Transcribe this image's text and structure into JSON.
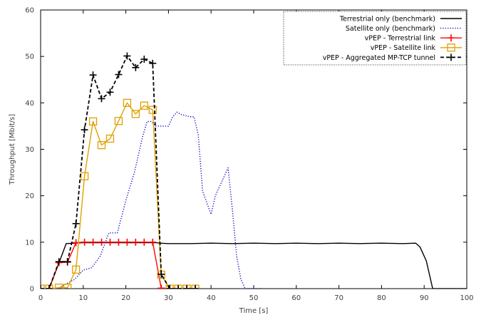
{
  "chart_data": {
    "type": "line",
    "xlabel": "Time [s]",
    "ylabel": "Throughput [Mbit/s]",
    "xlim": [
      0,
      100
    ],
    "ylim": [
      0,
      60
    ],
    "xticks": [
      0,
      10,
      20,
      30,
      40,
      50,
      60,
      70,
      80,
      90,
      100
    ],
    "yticks": [
      0,
      10,
      20,
      30,
      40,
      50,
      60
    ],
    "grid": false,
    "legend_position": "top-right",
    "series": [
      {
        "name": "Terrestrial only (benchmark)",
        "color": "#000000",
        "style": "solid",
        "marker": "none",
        "x": [
          2,
          4.5,
          6,
          8,
          10,
          12,
          14,
          16,
          18,
          20,
          22,
          24,
          26,
          27,
          28,
          30,
          35,
          40,
          45,
          50,
          55,
          60,
          65,
          70,
          75,
          80,
          85,
          88,
          89,
          90.5,
          92,
          100
        ],
        "y": [
          0,
          6,
          9.7,
          9.8,
          9.9,
          9.9,
          9.9,
          9.9,
          9.9,
          9.9,
          9.9,
          9.9,
          9.9,
          9.9,
          9.8,
          9.7,
          9.7,
          9.8,
          9.7,
          9.8,
          9.7,
          9.8,
          9.7,
          9.8,
          9.7,
          9.8,
          9.7,
          9.8,
          9,
          6,
          0,
          0
        ]
      },
      {
        "name": "Satellite only (benchmark)",
        "color": "#0000cc",
        "style": "dotted",
        "marker": "none",
        "x": [
          2,
          4,
          6,
          8,
          10,
          12,
          14,
          16,
          17,
          18,
          20,
          22,
          24,
          25,
          26,
          27,
          28,
          30,
          31,
          32,
          33,
          35,
          36,
          37,
          38,
          40,
          41,
          43,
          44,
          45,
          46,
          47,
          48,
          49,
          50,
          52
        ],
        "y": [
          0,
          0,
          1,
          2,
          4,
          4.5,
          7,
          12,
          12,
          12,
          19,
          25,
          33,
          36,
          36,
          35,
          35,
          35,
          37,
          38,
          37.5,
          37,
          37,
          33,
          21,
          16,
          20,
          24,
          26,
          17,
          7,
          2,
          0,
          0,
          0,
          0
        ]
      },
      {
        "name": "vPEP - Terrestrial link",
        "color": "#ff0000",
        "style": "solid",
        "marker": "plus",
        "x": [
          0,
          2,
          4.3,
          6.3,
          8.3,
          10.3,
          12.3,
          14.3,
          16.3,
          18.3,
          20.3,
          22.3,
          24.3,
          26.3,
          28.3,
          30.3,
          32.3,
          34.3,
          36.3
        ],
        "y": [
          0,
          0,
          5.6,
          5.7,
          9.9,
          10,
          10,
          10,
          10,
          10,
          10,
          10,
          10,
          10,
          0.1,
          0,
          0,
          0,
          0
        ]
      },
      {
        "name": "vPEP - Satellite link",
        "color": "#e0a000",
        "style": "solid",
        "marker": "square",
        "x": [
          0,
          2,
          4.3,
          6.3,
          8.3,
          10.3,
          12.3,
          14.3,
          16.3,
          18.3,
          20.3,
          22.3,
          24.3,
          26.3,
          28.3,
          30.3,
          32.3,
          34.3,
          36.3
        ],
        "y": [
          0,
          0,
          0.2,
          0.2,
          4.1,
          24.2,
          36,
          30.9,
          32.3,
          36.1,
          40,
          37.6,
          39.4,
          38.5,
          3,
          0,
          0,
          0,
          0
        ]
      },
      {
        "name": "vPEP - Aggregated MP-TCP tunnel",
        "color": "#000000",
        "style": "dashed",
        "marker": "plus",
        "x": [
          0,
          2,
          4.3,
          6.3,
          8.3,
          10.3,
          12.3,
          14.3,
          16.3,
          18.3,
          20.3,
          22.3,
          24.3,
          26.3,
          28.3,
          30.3,
          32.3,
          34.3,
          36.3
        ],
        "y": [
          0,
          0,
          5.8,
          5.8,
          14,
          34.2,
          46,
          40.9,
          42.3,
          46.1,
          50.1,
          47.6,
          49.4,
          48.5,
          3.1,
          0,
          0,
          0,
          0
        ]
      }
    ]
  }
}
